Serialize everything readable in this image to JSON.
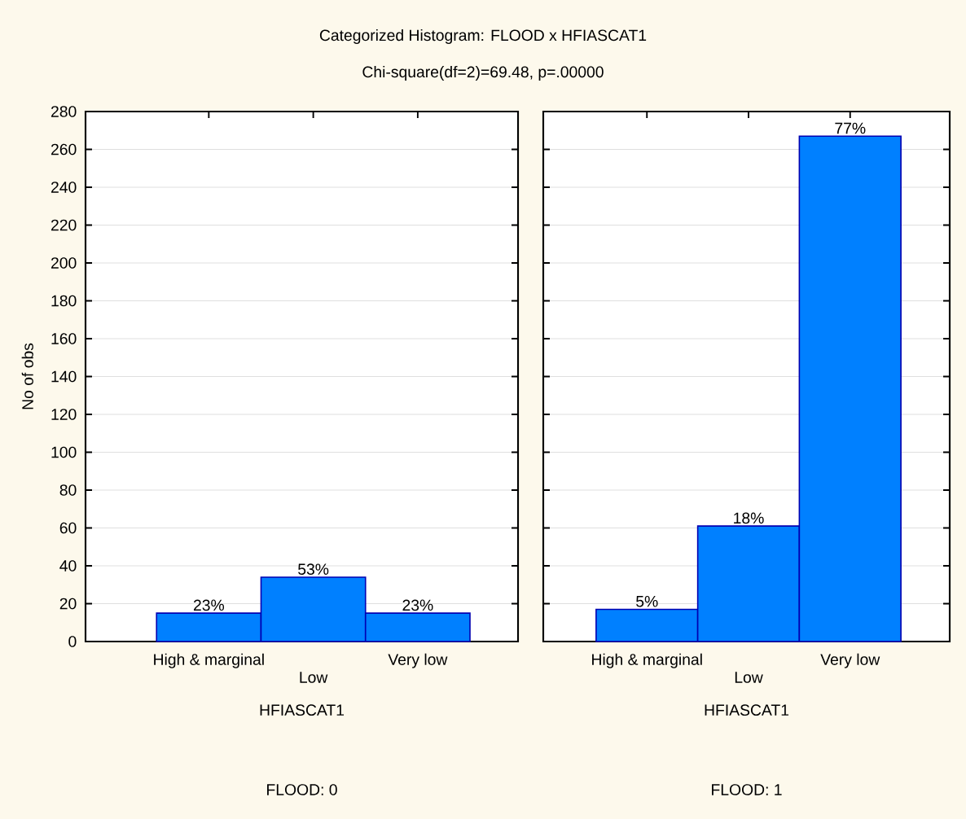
{
  "chart_data": [
    {
      "type": "bar",
      "title": "Categorized Histogram: FLOOD x HFIASCAT1",
      "subtitle": "Chi-square(df=2)=69.48, p=.00000",
      "categories": [
        "High & marginal",
        "Low",
        "Very low"
      ],
      "values": [
        15,
        34,
        15
      ],
      "color": "#0080ff",
      "xlabel": "HFIASCAT1",
      "ylabel": "No of obs",
      "annotations": [
        {
          "text": "23%",
          "x": "High & marginal",
          "y": 15
        },
        {
          "text": "53%",
          "x": "Low",
          "y": 34
        },
        {
          "text": "23%",
          "x": "Very low",
          "y": 15
        },
        "FLOOD: 0"
      ],
      "ylim": [
        0,
        280
      ],
      "yticks": [
        0,
        20,
        40,
        60,
        80,
        100,
        120,
        140,
        160,
        180,
        200,
        220,
        240,
        260,
        280
      ],
      "grid": "y"
    },
    {
      "type": "bar",
      "categories": [
        "High & marginal",
        "Low",
        "Very low"
      ],
      "values": [
        17,
        61,
        267
      ],
      "color": "#0080ff",
      "xlabel": "HFIASCAT1",
      "annotations": [
        {
          "text": "5%",
          "x": "High & marginal",
          "y": 17
        },
        {
          "text": "18%",
          "x": "Low",
          "y": 61
        },
        {
          "text": "77%",
          "x": "Very low",
          "y": 267
        },
        "FLOOD: 1"
      ],
      "ylim": [
        0,
        280
      ],
      "yticks": [
        0,
        20,
        40,
        60,
        80,
        100,
        120,
        140,
        160,
        180,
        200,
        220,
        240,
        260,
        280
      ],
      "grid": "y",
      "tick_labels": "x"
    }
  ]
}
